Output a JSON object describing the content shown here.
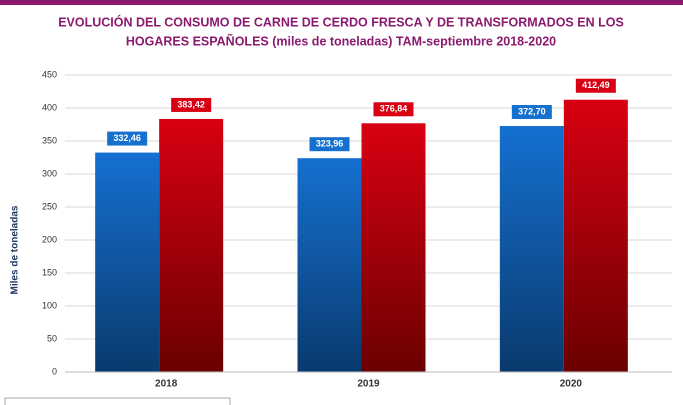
{
  "chart_data": {
    "type": "bar",
    "title": [
      "EVOLUCIÓN DEL CONSUMO DE CARNE DE CERDO FRESCA Y DE TRANSFORMADOS EN LOS",
      "HOGARES ESPAÑOLES (miles de toneladas) TAM-septiembre 2018-2020"
    ],
    "y_label": "Miles de toneladas",
    "categories": [
      "2018",
      "2019",
      "2020"
    ],
    "series": [
      {
        "color": "#1570d0",
        "values": [
          332.46,
          323.96,
          372.7
        ],
        "value_labels": [
          "332,46",
          "323,96",
          "372,70"
        ]
      },
      {
        "color": "#d80012",
        "values": [
          383.42,
          376.84,
          412.49
        ],
        "value_labels": [
          "383,42",
          "376,84",
          "412,49"
        ]
      }
    ],
    "ylim": [
      0,
      450
    ],
    "yticks": [
      0,
      50,
      100,
      150,
      200,
      250,
      300,
      350,
      400,
      450
    ],
    "grid": true
  }
}
